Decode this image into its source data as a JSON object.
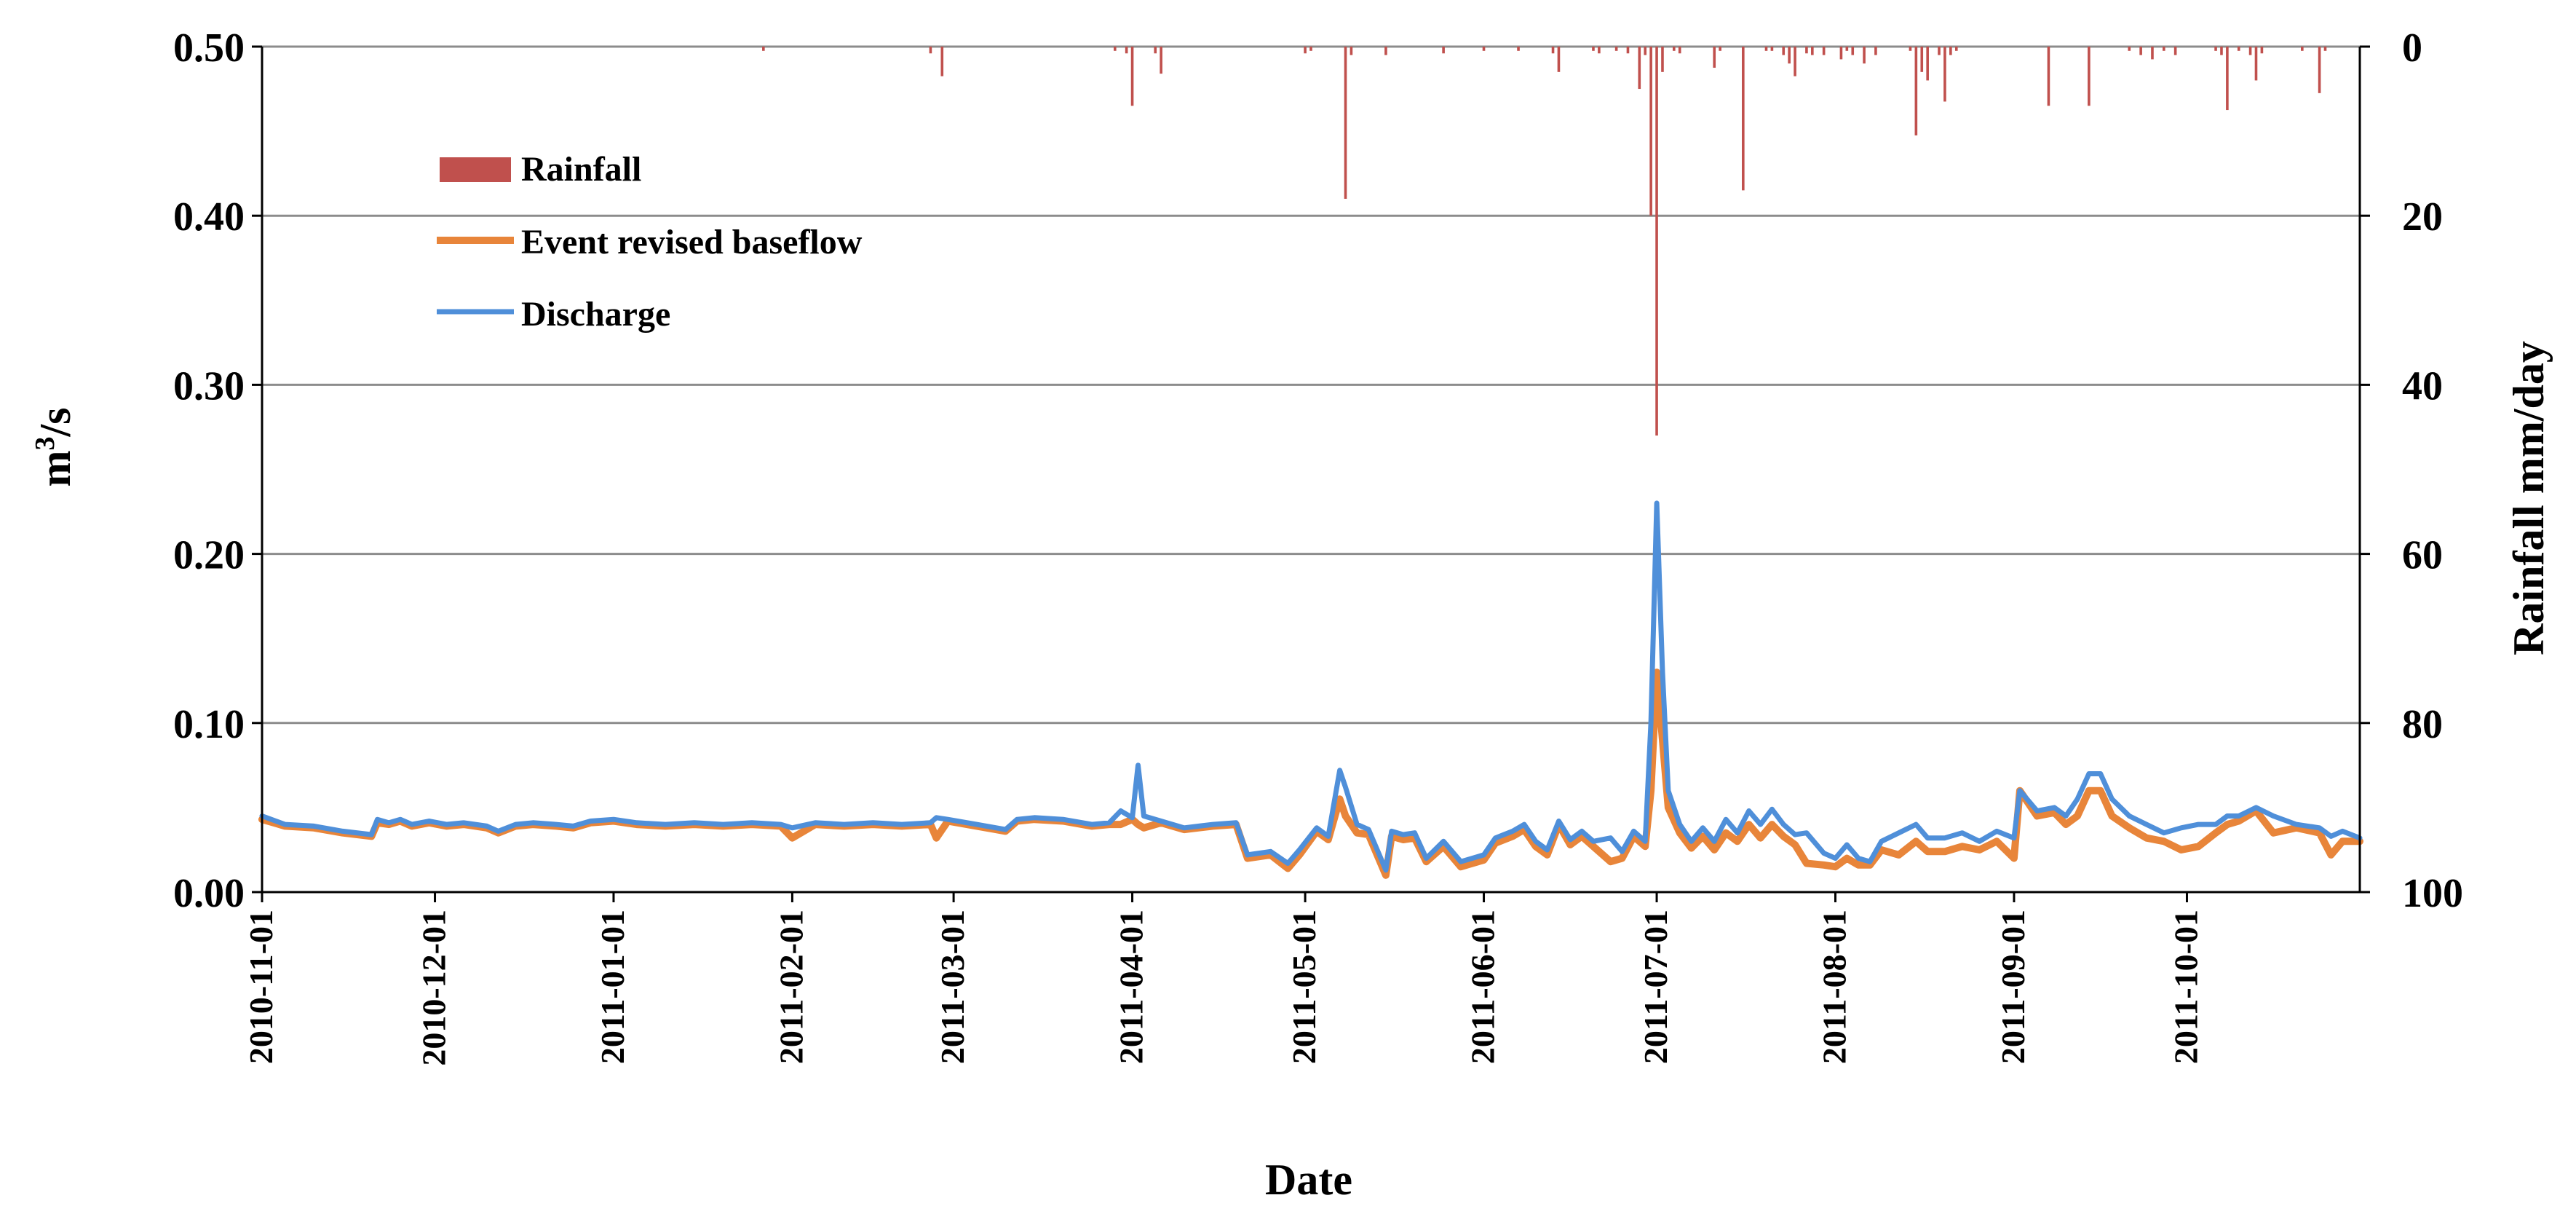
{
  "chart_data": {
    "type": "line",
    "title": "",
    "xlabel": "Date",
    "ylabel": "m³/s",
    "y2label": "Rainfall mm/day",
    "xlim": [
      "2010-11-01",
      "2011-10-31"
    ],
    "ylim": [
      0,
      0.5
    ],
    "y2lim": [
      100,
      0
    ],
    "y2_inverted": true,
    "grid": "horizontal",
    "legend_position": "top-left",
    "y_ticks": [
      "0.00",
      "0.10",
      "0.20",
      "0.30",
      "0.40",
      "0.50"
    ],
    "y2_ticks": [
      "100",
      "80",
      "60",
      "40",
      "20",
      "0"
    ],
    "x_ticks": [
      "2010-11-01",
      "2010-12-01",
      "2011-01-01",
      "2011-02-01",
      "2011-03-01",
      "2011-04-01",
      "2011-05-01",
      "2011-06-01",
      "2011-07-01",
      "2011-08-01",
      "2011-09-01",
      "2011-10-01"
    ],
    "legend": [
      {
        "label": "Rainfall",
        "color": "#c0504d",
        "kind": "bar"
      },
      {
        "label": "Event revised baseflow",
        "color": "#e8853a",
        "kind": "line"
      },
      {
        "label": "Discharge",
        "color": "#4f8fd9",
        "kind": "line"
      }
    ],
    "series": [
      {
        "name": "Discharge",
        "axis": "left",
        "color": "#4f8fd9",
        "x": [
          "2010-11-01",
          "2010-11-05",
          "2010-11-10",
          "2010-11-15",
          "2010-11-20",
          "2010-11-21",
          "2010-11-23",
          "2010-11-25",
          "2010-11-27",
          "2010-11-30",
          "2010-12-03",
          "2010-12-06",
          "2010-12-10",
          "2010-12-12",
          "2010-12-15",
          "2010-12-18",
          "2010-12-22",
          "2010-12-25",
          "2010-12-28",
          "2011-01-01",
          "2011-01-05",
          "2011-01-10",
          "2011-01-15",
          "2011-01-20",
          "2011-01-25",
          "2011-01-30",
          "2011-02-01",
          "2011-02-05",
          "2011-02-10",
          "2011-02-15",
          "2011-02-20",
          "2011-02-25",
          "2011-02-26",
          "2011-02-28",
          "2011-03-05",
          "2011-03-10",
          "2011-03-12",
          "2011-03-15",
          "2011-03-20",
          "2011-03-25",
          "2011-03-28",
          "2011-03-30",
          "2011-04-01",
          "2011-04-02",
          "2011-04-03",
          "2011-04-06",
          "2011-04-10",
          "2011-04-15",
          "2011-04-19",
          "2011-04-21",
          "2011-04-25",
          "2011-04-28",
          "2011-04-30",
          "2011-05-03",
          "2011-05-05",
          "2011-05-07",
          "2011-05-08",
          "2011-05-10",
          "2011-05-12",
          "2011-05-15",
          "2011-05-16",
          "2011-05-18",
          "2011-05-20",
          "2011-05-22",
          "2011-05-25",
          "2011-05-28",
          "2011-06-01",
          "2011-06-03",
          "2011-06-06",
          "2011-06-08",
          "2011-06-10",
          "2011-06-12",
          "2011-06-14",
          "2011-06-16",
          "2011-06-18",
          "2011-06-20",
          "2011-06-23",
          "2011-06-25",
          "2011-06-27",
          "2011-06-29",
          "2011-06-30",
          "2011-07-01",
          "2011-07-02",
          "2011-07-03",
          "2011-07-05",
          "2011-07-07",
          "2011-07-09",
          "2011-07-11",
          "2011-07-13",
          "2011-07-15",
          "2011-07-17",
          "2011-07-19",
          "2011-07-21",
          "2011-07-23",
          "2011-07-25",
          "2011-07-27",
          "2011-07-30",
          "2011-08-01",
          "2011-08-03",
          "2011-08-05",
          "2011-08-07",
          "2011-08-09",
          "2011-08-12",
          "2011-08-15",
          "2011-08-17",
          "2011-08-20",
          "2011-08-23",
          "2011-08-26",
          "2011-08-29",
          "2011-09-01",
          "2011-09-02",
          "2011-09-05",
          "2011-09-08",
          "2011-09-10",
          "2011-09-12",
          "2011-09-14",
          "2011-09-16",
          "2011-09-18",
          "2011-09-21",
          "2011-09-24",
          "2011-09-27",
          "2011-09-30",
          "2011-10-03",
          "2011-10-06",
          "2011-10-08",
          "2011-10-10",
          "2011-10-13",
          "2011-10-16",
          "2011-10-20",
          "2011-10-24",
          "2011-10-26",
          "2011-10-28",
          "2011-10-31"
        ],
        "values": [
          0.045,
          0.04,
          0.039,
          0.036,
          0.034,
          0.043,
          0.041,
          0.043,
          0.04,
          0.042,
          0.04,
          0.041,
          0.039,
          0.036,
          0.04,
          0.041,
          0.04,
          0.039,
          0.042,
          0.043,
          0.041,
          0.04,
          0.041,
          0.04,
          0.041,
          0.04,
          0.038,
          0.041,
          0.04,
          0.041,
          0.04,
          0.041,
          0.044,
          0.043,
          0.04,
          0.037,
          0.043,
          0.044,
          0.043,
          0.04,
          0.041,
          0.048,
          0.044,
          0.075,
          0.045,
          0.042,
          0.038,
          0.04,
          0.041,
          0.022,
          0.024,
          0.017,
          0.025,
          0.038,
          0.033,
          0.072,
          0.062,
          0.04,
          0.037,
          0.013,
          0.036,
          0.034,
          0.035,
          0.02,
          0.03,
          0.018,
          0.022,
          0.032,
          0.036,
          0.04,
          0.03,
          0.025,
          0.042,
          0.031,
          0.036,
          0.03,
          0.032,
          0.024,
          0.036,
          0.03,
          0.1,
          0.23,
          0.13,
          0.06,
          0.04,
          0.03,
          0.038,
          0.03,
          0.043,
          0.035,
          0.048,
          0.04,
          0.049,
          0.04,
          0.034,
          0.035,
          0.023,
          0.02,
          0.028,
          0.02,
          0.018,
          0.03,
          0.035,
          0.04,
          0.032,
          0.032,
          0.035,
          0.03,
          0.036,
          0.032,
          0.06,
          0.048,
          0.05,
          0.045,
          0.055,
          0.07,
          0.07,
          0.055,
          0.045,
          0.04,
          0.035,
          0.038,
          0.04,
          0.04,
          0.045,
          0.045,
          0.05,
          0.045,
          0.04,
          0.038,
          0.033,
          0.036,
          0.032
        ]
      },
      {
        "name": "Event revised baseflow",
        "axis": "left",
        "color": "#e8853a",
        "x": [
          "2010-11-01",
          "2010-11-05",
          "2010-11-10",
          "2010-11-15",
          "2010-11-20",
          "2010-11-21",
          "2010-11-23",
          "2010-11-25",
          "2010-11-27",
          "2010-11-30",
          "2010-12-03",
          "2010-12-06",
          "2010-12-10",
          "2010-12-12",
          "2010-12-15",
          "2010-12-18",
          "2010-12-22",
          "2010-12-25",
          "2010-12-28",
          "2011-01-01",
          "2011-01-05",
          "2011-01-10",
          "2011-01-15",
          "2011-01-20",
          "2011-01-25",
          "2011-01-30",
          "2011-02-01",
          "2011-02-05",
          "2011-02-10",
          "2011-02-15",
          "2011-02-20",
          "2011-02-25",
          "2011-02-26",
          "2011-02-28",
          "2011-03-05",
          "2011-03-10",
          "2011-03-12",
          "2011-03-15",
          "2011-03-20",
          "2011-03-25",
          "2011-03-28",
          "2011-03-30",
          "2011-04-01",
          "2011-04-02",
          "2011-04-03",
          "2011-04-06",
          "2011-04-10",
          "2011-04-15",
          "2011-04-19",
          "2011-04-21",
          "2011-04-25",
          "2011-04-28",
          "2011-04-30",
          "2011-05-03",
          "2011-05-05",
          "2011-05-07",
          "2011-05-08",
          "2011-05-10",
          "2011-05-12",
          "2011-05-15",
          "2011-05-16",
          "2011-05-18",
          "2011-05-20",
          "2011-05-22",
          "2011-05-25",
          "2011-05-28",
          "2011-06-01",
          "2011-06-03",
          "2011-06-06",
          "2011-06-08",
          "2011-06-10",
          "2011-06-12",
          "2011-06-14",
          "2011-06-16",
          "2011-06-18",
          "2011-06-20",
          "2011-06-23",
          "2011-06-25",
          "2011-06-27",
          "2011-06-29",
          "2011-06-30",
          "2011-07-01",
          "2011-07-02",
          "2011-07-03",
          "2011-07-05",
          "2011-07-07",
          "2011-07-09",
          "2011-07-11",
          "2011-07-13",
          "2011-07-15",
          "2011-07-17",
          "2011-07-19",
          "2011-07-21",
          "2011-07-23",
          "2011-07-25",
          "2011-07-27",
          "2011-07-30",
          "2011-08-01",
          "2011-08-03",
          "2011-08-05",
          "2011-08-07",
          "2011-08-09",
          "2011-08-12",
          "2011-08-15",
          "2011-08-17",
          "2011-08-20",
          "2011-08-23",
          "2011-08-26",
          "2011-08-29",
          "2011-09-01",
          "2011-09-02",
          "2011-09-05",
          "2011-09-08",
          "2011-09-10",
          "2011-09-12",
          "2011-09-14",
          "2011-09-16",
          "2011-09-18",
          "2011-09-21",
          "2011-09-24",
          "2011-09-27",
          "2011-09-30",
          "2011-10-03",
          "2011-10-06",
          "2011-10-08",
          "2011-10-10",
          "2011-10-13",
          "2011-10-16",
          "2011-10-20",
          "2011-10-24",
          "2011-10-26",
          "2011-10-28",
          "2011-10-31"
        ],
        "values": [
          0.043,
          0.039,
          0.038,
          0.035,
          0.033,
          0.041,
          0.04,
          0.042,
          0.039,
          0.041,
          0.039,
          0.04,
          0.038,
          0.035,
          0.039,
          0.04,
          0.039,
          0.038,
          0.041,
          0.042,
          0.04,
          0.039,
          0.04,
          0.039,
          0.04,
          0.039,
          0.032,
          0.04,
          0.039,
          0.04,
          0.039,
          0.04,
          0.032,
          0.042,
          0.039,
          0.036,
          0.042,
          0.043,
          0.042,
          0.039,
          0.04,
          0.04,
          0.043,
          0.04,
          0.038,
          0.041,
          0.037,
          0.039,
          0.04,
          0.02,
          0.022,
          0.014,
          0.022,
          0.036,
          0.031,
          0.055,
          0.045,
          0.035,
          0.034,
          0.01,
          0.033,
          0.031,
          0.032,
          0.018,
          0.027,
          0.015,
          0.019,
          0.029,
          0.033,
          0.037,
          0.027,
          0.022,
          0.04,
          0.028,
          0.033,
          0.027,
          0.018,
          0.02,
          0.033,
          0.027,
          0.06,
          0.13,
          0.09,
          0.05,
          0.035,
          0.026,
          0.033,
          0.025,
          0.035,
          0.03,
          0.04,
          0.032,
          0.04,
          0.033,
          0.028,
          0.017,
          0.016,
          0.015,
          0.02,
          0.016,
          0.016,
          0.025,
          0.022,
          0.03,
          0.024,
          0.024,
          0.027,
          0.025,
          0.03,
          0.02,
          0.06,
          0.045,
          0.047,
          0.04,
          0.045,
          0.06,
          0.06,
          0.045,
          0.038,
          0.032,
          0.03,
          0.025,
          0.027,
          0.035,
          0.04,
          0.042,
          0.048,
          0.035,
          0.038,
          0.035,
          0.022,
          0.03,
          0.03
        ]
      }
    ],
    "rainfall": {
      "name": "Rainfall",
      "axis": "right",
      "color": "#c0504d",
      "dates": [
        "2011-01-27",
        "2011-02-25",
        "2011-02-27",
        "2011-03-29",
        "2011-03-31",
        "2011-04-01",
        "2011-04-05",
        "2011-04-06",
        "2011-05-01",
        "2011-05-02",
        "2011-05-08",
        "2011-05-09",
        "2011-05-15",
        "2011-05-25",
        "2011-06-01",
        "2011-06-07",
        "2011-06-13",
        "2011-06-14",
        "2011-06-20",
        "2011-06-21",
        "2011-06-24",
        "2011-06-26",
        "2011-06-28",
        "2011-06-29",
        "2011-06-30",
        "2011-07-01",
        "2011-07-02",
        "2011-07-04",
        "2011-07-05",
        "2011-07-11",
        "2011-07-12",
        "2011-07-16",
        "2011-07-20",
        "2011-07-21",
        "2011-07-23",
        "2011-07-24",
        "2011-07-25",
        "2011-07-27",
        "2011-07-28",
        "2011-07-30",
        "2011-08-02",
        "2011-08-03",
        "2011-08-04",
        "2011-08-06",
        "2011-08-08",
        "2011-08-14",
        "2011-08-15",
        "2011-08-16",
        "2011-08-17",
        "2011-08-19",
        "2011-08-20",
        "2011-08-21",
        "2011-08-22",
        "2011-09-07",
        "2011-09-14",
        "2011-09-21",
        "2011-09-23",
        "2011-09-25",
        "2011-09-27",
        "2011-09-29",
        "2011-10-06",
        "2011-10-07",
        "2011-10-08",
        "2011-10-10",
        "2011-10-12",
        "2011-10-13",
        "2011-10-14",
        "2011-10-21",
        "2011-10-24",
        "2011-10-25"
      ],
      "values": [
        0.5,
        0.8,
        3.5,
        0.5,
        0.8,
        7,
        0.8,
        3.2,
        0.8,
        0.5,
        18,
        1,
        1,
        0.8,
        0.5,
        0.5,
        0.8,
        3,
        0.5,
        0.8,
        0.5,
        0.8,
        5,
        1,
        20,
        46,
        3,
        0.5,
        0.8,
        2.5,
        0.5,
        17,
        0.5,
        0.5,
        1,
        2,
        3.5,
        0.8,
        1,
        1,
        1.5,
        0.5,
        1,
        2,
        1,
        0.5,
        10.5,
        3,
        4,
        1,
        6.5,
        1,
        0.5,
        7,
        7,
        0.5,
        1,
        1.5,
        0.5,
        1,
        0.5,
        1,
        7.5,
        0.5,
        1,
        4,
        0.8,
        0.5,
        5.5,
        0.5
      ]
    }
  }
}
